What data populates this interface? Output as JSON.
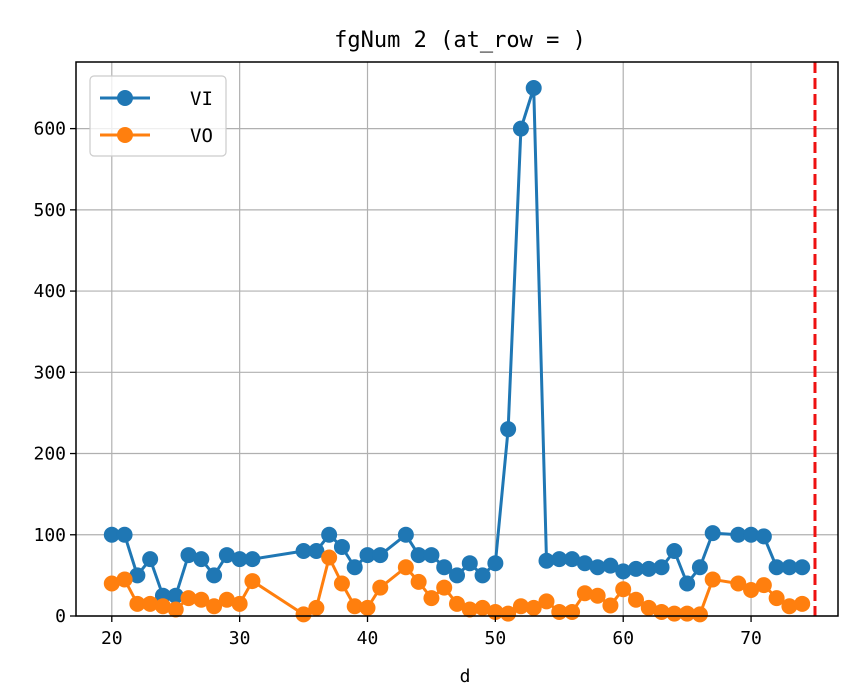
{
  "chart_data": {
    "type": "line",
    "title": "fgNum 2 (at_row = )",
    "xlabel": "d",
    "ylabel": "",
    "xlim": [
      17.2,
      76.8
    ],
    "ylim": [
      0,
      682
    ],
    "xticks": [
      20,
      30,
      40,
      50,
      60,
      70
    ],
    "yticks": [
      0,
      100,
      200,
      300,
      400,
      500,
      600
    ],
    "grid": true,
    "legend": "top-left",
    "vline": {
      "x": 75,
      "color": "#ee1111",
      "style": "dashed"
    },
    "series": [
      {
        "name": "VI",
        "color": "#1f77b4",
        "points": [
          [
            20,
            100
          ],
          [
            21,
            100
          ],
          [
            22,
            50
          ],
          [
            23,
            70
          ],
          [
            24,
            25
          ],
          [
            25,
            25
          ],
          [
            26,
            75
          ],
          [
            27,
            70
          ],
          [
            28,
            50
          ],
          [
            29,
            75
          ],
          [
            30,
            70
          ],
          [
            31,
            70
          ],
          [
            35,
            80
          ],
          [
            36,
            80
          ],
          [
            37,
            100
          ],
          [
            38,
            85
          ],
          [
            39,
            60
          ],
          [
            40,
            75
          ],
          [
            41,
            75
          ],
          [
            43,
            100
          ],
          [
            44,
            75
          ],
          [
            45,
            75
          ],
          [
            46,
            60
          ],
          [
            47,
            50
          ],
          [
            48,
            65
          ],
          [
            49,
            50
          ],
          [
            50,
            65
          ],
          [
            51,
            230
          ],
          [
            52,
            600
          ],
          [
            53,
            650
          ],
          [
            54,
            68
          ],
          [
            55,
            70
          ],
          [
            56,
            70
          ],
          [
            57,
            65
          ],
          [
            58,
            60
          ],
          [
            59,
            62
          ],
          [
            60,
            55
          ],
          [
            61,
            58
          ],
          [
            62,
            58
          ],
          [
            63,
            60
          ],
          [
            64,
            80
          ],
          [
            65,
            40
          ],
          [
            66,
            60
          ],
          [
            67,
            102
          ],
          [
            69,
            100
          ],
          [
            70,
            100
          ],
          [
            71,
            98
          ],
          [
            72,
            60
          ],
          [
            73,
            60
          ],
          [
            74,
            60
          ]
        ]
      },
      {
        "name": "VO",
        "color": "#ff7f0e",
        "points": [
          [
            20,
            40
          ],
          [
            21,
            45
          ],
          [
            22,
            15
          ],
          [
            23,
            15
          ],
          [
            24,
            12
          ],
          [
            25,
            8
          ],
          [
            26,
            22
          ],
          [
            27,
            20
          ],
          [
            28,
            12
          ],
          [
            29,
            20
          ],
          [
            30,
            15
          ],
          [
            31,
            43
          ],
          [
            35,
            2
          ],
          [
            36,
            10
          ],
          [
            37,
            72
          ],
          [
            38,
            40
          ],
          [
            39,
            12
          ],
          [
            40,
            10
          ],
          [
            41,
            35
          ],
          [
            43,
            60
          ],
          [
            44,
            42
          ],
          [
            45,
            22
          ],
          [
            46,
            35
          ],
          [
            47,
            15
          ],
          [
            48,
            8
          ],
          [
            49,
            10
          ],
          [
            50,
            5
          ],
          [
            51,
            3
          ],
          [
            52,
            12
          ],
          [
            53,
            10
          ],
          [
            54,
            18
          ],
          [
            55,
            5
          ],
          [
            56,
            5
          ],
          [
            57,
            28
          ],
          [
            58,
            25
          ],
          [
            59,
            13
          ],
          [
            60,
            33
          ],
          [
            61,
            20
          ],
          [
            62,
            10
          ],
          [
            63,
            5
          ],
          [
            64,
            3
          ],
          [
            65,
            3
          ],
          [
            66,
            2
          ],
          [
            67,
            45
          ],
          [
            69,
            40
          ],
          [
            70,
            32
          ],
          [
            71,
            38
          ],
          [
            72,
            22
          ],
          [
            73,
            12
          ],
          [
            74,
            15
          ]
        ]
      }
    ]
  }
}
